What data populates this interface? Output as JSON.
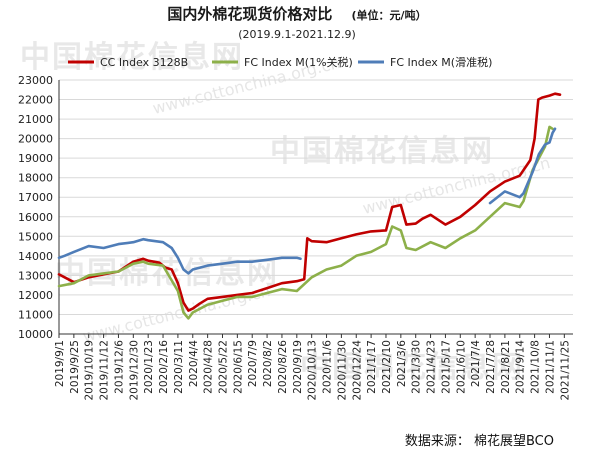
{
  "header": {
    "title": "国内外棉花现货价格对比",
    "unit": "(单位：元/吨）",
    "subtitle": "(2019.9.1-2021.12.9)"
  },
  "footer": {
    "source": "数据来源：  棉花展望BCO"
  },
  "watermark": {
    "brand": "中国棉花信息网",
    "url": "www.cottonchina.org.cn"
  },
  "colors": {
    "cc_index": "#c00000",
    "fc_index_1": "#8db04a",
    "fc_index_sliding": "#4f7db8",
    "grid": "#d9d9d9",
    "axis": "#333333"
  },
  "chart_data": {
    "type": "line",
    "title": "国内外棉花现货价格对比",
    "ylim": [
      10000,
      23000
    ],
    "ytick_step": 1000,
    "grid": "horizontal",
    "legend_position": "top",
    "xlim": [
      "2019-09-01",
      "2021-12-09"
    ],
    "x_ticks": [
      "2019/9/1",
      "2019/9/25",
      "2019/10/19",
      "2019/11/12",
      "2019/12/6",
      "2019/12/30",
      "2020/1/23",
      "2020/2/16",
      "2020/3/11",
      "2020/4/4",
      "2020/4/28",
      "2020/5/22",
      "2020/6/15",
      "2020/7/9",
      "2020/8/2",
      "2020/8/26",
      "2020/9/19",
      "2020/10/13",
      "2020/11/6",
      "2020/11/30",
      "2020/12/24",
      "2021/1/17",
      "2021/2/10",
      "2021/3/6",
      "2021/3/30",
      "2021/4/23",
      "2021/5/17",
      "2021/6/10",
      "2021/7/4",
      "2021/7/28",
      "2021/8/21",
      "2021/9/14",
      "2021/10/8",
      "2021/11/1",
      "2021/11/25"
    ],
    "series": [
      {
        "name": "CC Index 3128B",
        "color": "#c00000",
        "points": [
          [
            "2019-09-01",
            13050
          ],
          [
            "2019-09-10",
            12900
          ],
          [
            "2019-09-25",
            12650
          ],
          [
            "2019-10-19",
            12900
          ],
          [
            "2019-11-12",
            13050
          ],
          [
            "2019-12-06",
            13200
          ],
          [
            "2019-12-30",
            13700
          ],
          [
            "2020-01-15",
            13850
          ],
          [
            "2020-01-23",
            13750
          ],
          [
            "2020-02-10",
            13650
          ],
          [
            "2020-02-20",
            13400
          ],
          [
            "2020-03-01",
            13300
          ],
          [
            "2020-03-11",
            12600
          ],
          [
            "2020-03-20",
            11600
          ],
          [
            "2020-03-28",
            11200
          ],
          [
            "2020-04-04",
            11300
          ],
          [
            "2020-04-15",
            11550
          ],
          [
            "2020-04-28",
            11800
          ],
          [
            "2020-05-22",
            11900
          ],
          [
            "2020-06-15",
            12000
          ],
          [
            "2020-07-09",
            12100
          ],
          [
            "2020-08-02",
            12350
          ],
          [
            "2020-08-26",
            12600
          ],
          [
            "2020-09-19",
            12700
          ],
          [
            "2020-10-01",
            12800
          ],
          [
            "2020-10-06",
            14900
          ],
          [
            "2020-10-13",
            14750
          ],
          [
            "2020-11-06",
            14700
          ],
          [
            "2020-11-30",
            14900
          ],
          [
            "2020-12-24",
            15100
          ],
          [
            "2021-01-17",
            15250
          ],
          [
            "2021-02-10",
            15300
          ],
          [
            "2021-02-20",
            16500
          ],
          [
            "2021-03-06",
            16600
          ],
          [
            "2021-03-15",
            15600
          ],
          [
            "2021-03-30",
            15650
          ],
          [
            "2021-04-10",
            15900
          ],
          [
            "2021-04-23",
            16100
          ],
          [
            "2021-05-17",
            15600
          ],
          [
            "2021-06-10",
            16000
          ],
          [
            "2021-07-04",
            16600
          ],
          [
            "2021-07-28",
            17300
          ],
          [
            "2021-08-21",
            17800
          ],
          [
            "2021-09-14",
            18100
          ],
          [
            "2021-10-01",
            18900
          ],
          [
            "2021-10-08",
            20000
          ],
          [
            "2021-10-14",
            22000
          ],
          [
            "2021-10-20",
            22100
          ],
          [
            "2021-11-01",
            22200
          ],
          [
            "2021-11-10",
            22300
          ],
          [
            "2021-11-18",
            22250
          ]
        ]
      },
      {
        "name": "FC Index M(1%关税)",
        "color": "#8db04a",
        "points": [
          [
            "2019-09-01",
            12450
          ],
          [
            "2019-09-25",
            12600
          ],
          [
            "2019-10-19",
            13000
          ],
          [
            "2019-11-12",
            13100
          ],
          [
            "2019-12-06",
            13200
          ],
          [
            "2019-12-30",
            13600
          ],
          [
            "2020-01-15",
            13700
          ],
          [
            "2020-01-23",
            13600
          ],
          [
            "2020-02-16",
            13500
          ],
          [
            "2020-03-11",
            12200
          ],
          [
            "2020-03-20",
            11100
          ],
          [
            "2020-03-28",
            10800
          ],
          [
            "2020-04-04",
            11100
          ],
          [
            "2020-04-28",
            11500
          ],
          [
            "2020-05-22",
            11700
          ],
          [
            "2020-06-15",
            11900
          ],
          [
            "2020-07-09",
            11900
          ],
          [
            "2020-08-02",
            12100
          ],
          [
            "2020-08-26",
            12300
          ],
          [
            "2020-09-19",
            12200
          ],
          [
            "2020-10-13",
            12900
          ],
          [
            "2020-11-06",
            13300
          ],
          [
            "2020-11-30",
            13500
          ],
          [
            "2020-12-24",
            14000
          ],
          [
            "2021-01-17",
            14200
          ],
          [
            "2021-02-10",
            14600
          ],
          [
            "2021-02-20",
            15500
          ],
          [
            "2021-03-06",
            15300
          ],
          [
            "2021-03-15",
            14400
          ],
          [
            "2021-03-30",
            14300
          ],
          [
            "2021-04-23",
            14700
          ],
          [
            "2021-05-17",
            14400
          ],
          [
            "2021-06-10",
            14900
          ],
          [
            "2021-07-04",
            15300
          ],
          [
            "2021-07-28",
            16000
          ],
          [
            "2021-08-21",
            16700
          ],
          [
            "2021-09-14",
            16500
          ],
          [
            "2021-09-20",
            16800
          ],
          [
            "2021-10-05",
            18400
          ],
          [
            "2021-10-15",
            19000
          ],
          [
            "2021-10-25",
            19600
          ],
          [
            "2021-11-01",
            20600
          ],
          [
            "2021-11-06",
            20500
          ]
        ]
      },
      {
        "name": "FC Index M(滑准税)",
        "color": "#4f7db8",
        "points": [
          [
            "2019-09-01",
            13900
          ],
          [
            "2019-09-10",
            14000
          ],
          [
            "2019-09-25",
            14200
          ],
          [
            "2019-10-19",
            14500
          ],
          [
            "2019-11-12",
            14400
          ],
          [
            "2019-12-06",
            14600
          ],
          [
            "2019-12-30",
            14700
          ],
          [
            "2020-01-15",
            14850
          ],
          [
            "2020-01-23",
            14800
          ],
          [
            "2020-02-16",
            14700
          ],
          [
            "2020-03-01",
            14400
          ],
          [
            "2020-03-11",
            13900
          ],
          [
            "2020-03-20",
            13300
          ],
          [
            "2020-03-28",
            13100
          ],
          [
            "2020-04-04",
            13300
          ],
          [
            "2020-04-28",
            13500
          ],
          [
            "2020-05-22",
            13600
          ],
          [
            "2020-06-15",
            13700
          ],
          [
            "2020-07-09",
            13700
          ],
          [
            "2020-08-02",
            13800
          ],
          [
            "2020-08-26",
            13900
          ],
          [
            "2020-09-19",
            13900
          ],
          [
            "2020-09-25",
            13850
          ]
        ]
      },
      {
        "name": "FC Index M(滑准税)",
        "color": "#4f7db8",
        "points": [
          [
            "2021-07-28",
            16700
          ],
          [
            "2021-08-21",
            17300
          ],
          [
            "2021-09-14",
            17000
          ],
          [
            "2021-09-20",
            17200
          ],
          [
            "2021-10-05",
            18300
          ],
          [
            "2021-10-15",
            19200
          ],
          [
            "2021-10-25",
            19700
          ],
          [
            "2021-11-01",
            19800
          ],
          [
            "2021-11-06",
            20300
          ],
          [
            "2021-11-10",
            20500
          ]
        ]
      }
    ]
  }
}
